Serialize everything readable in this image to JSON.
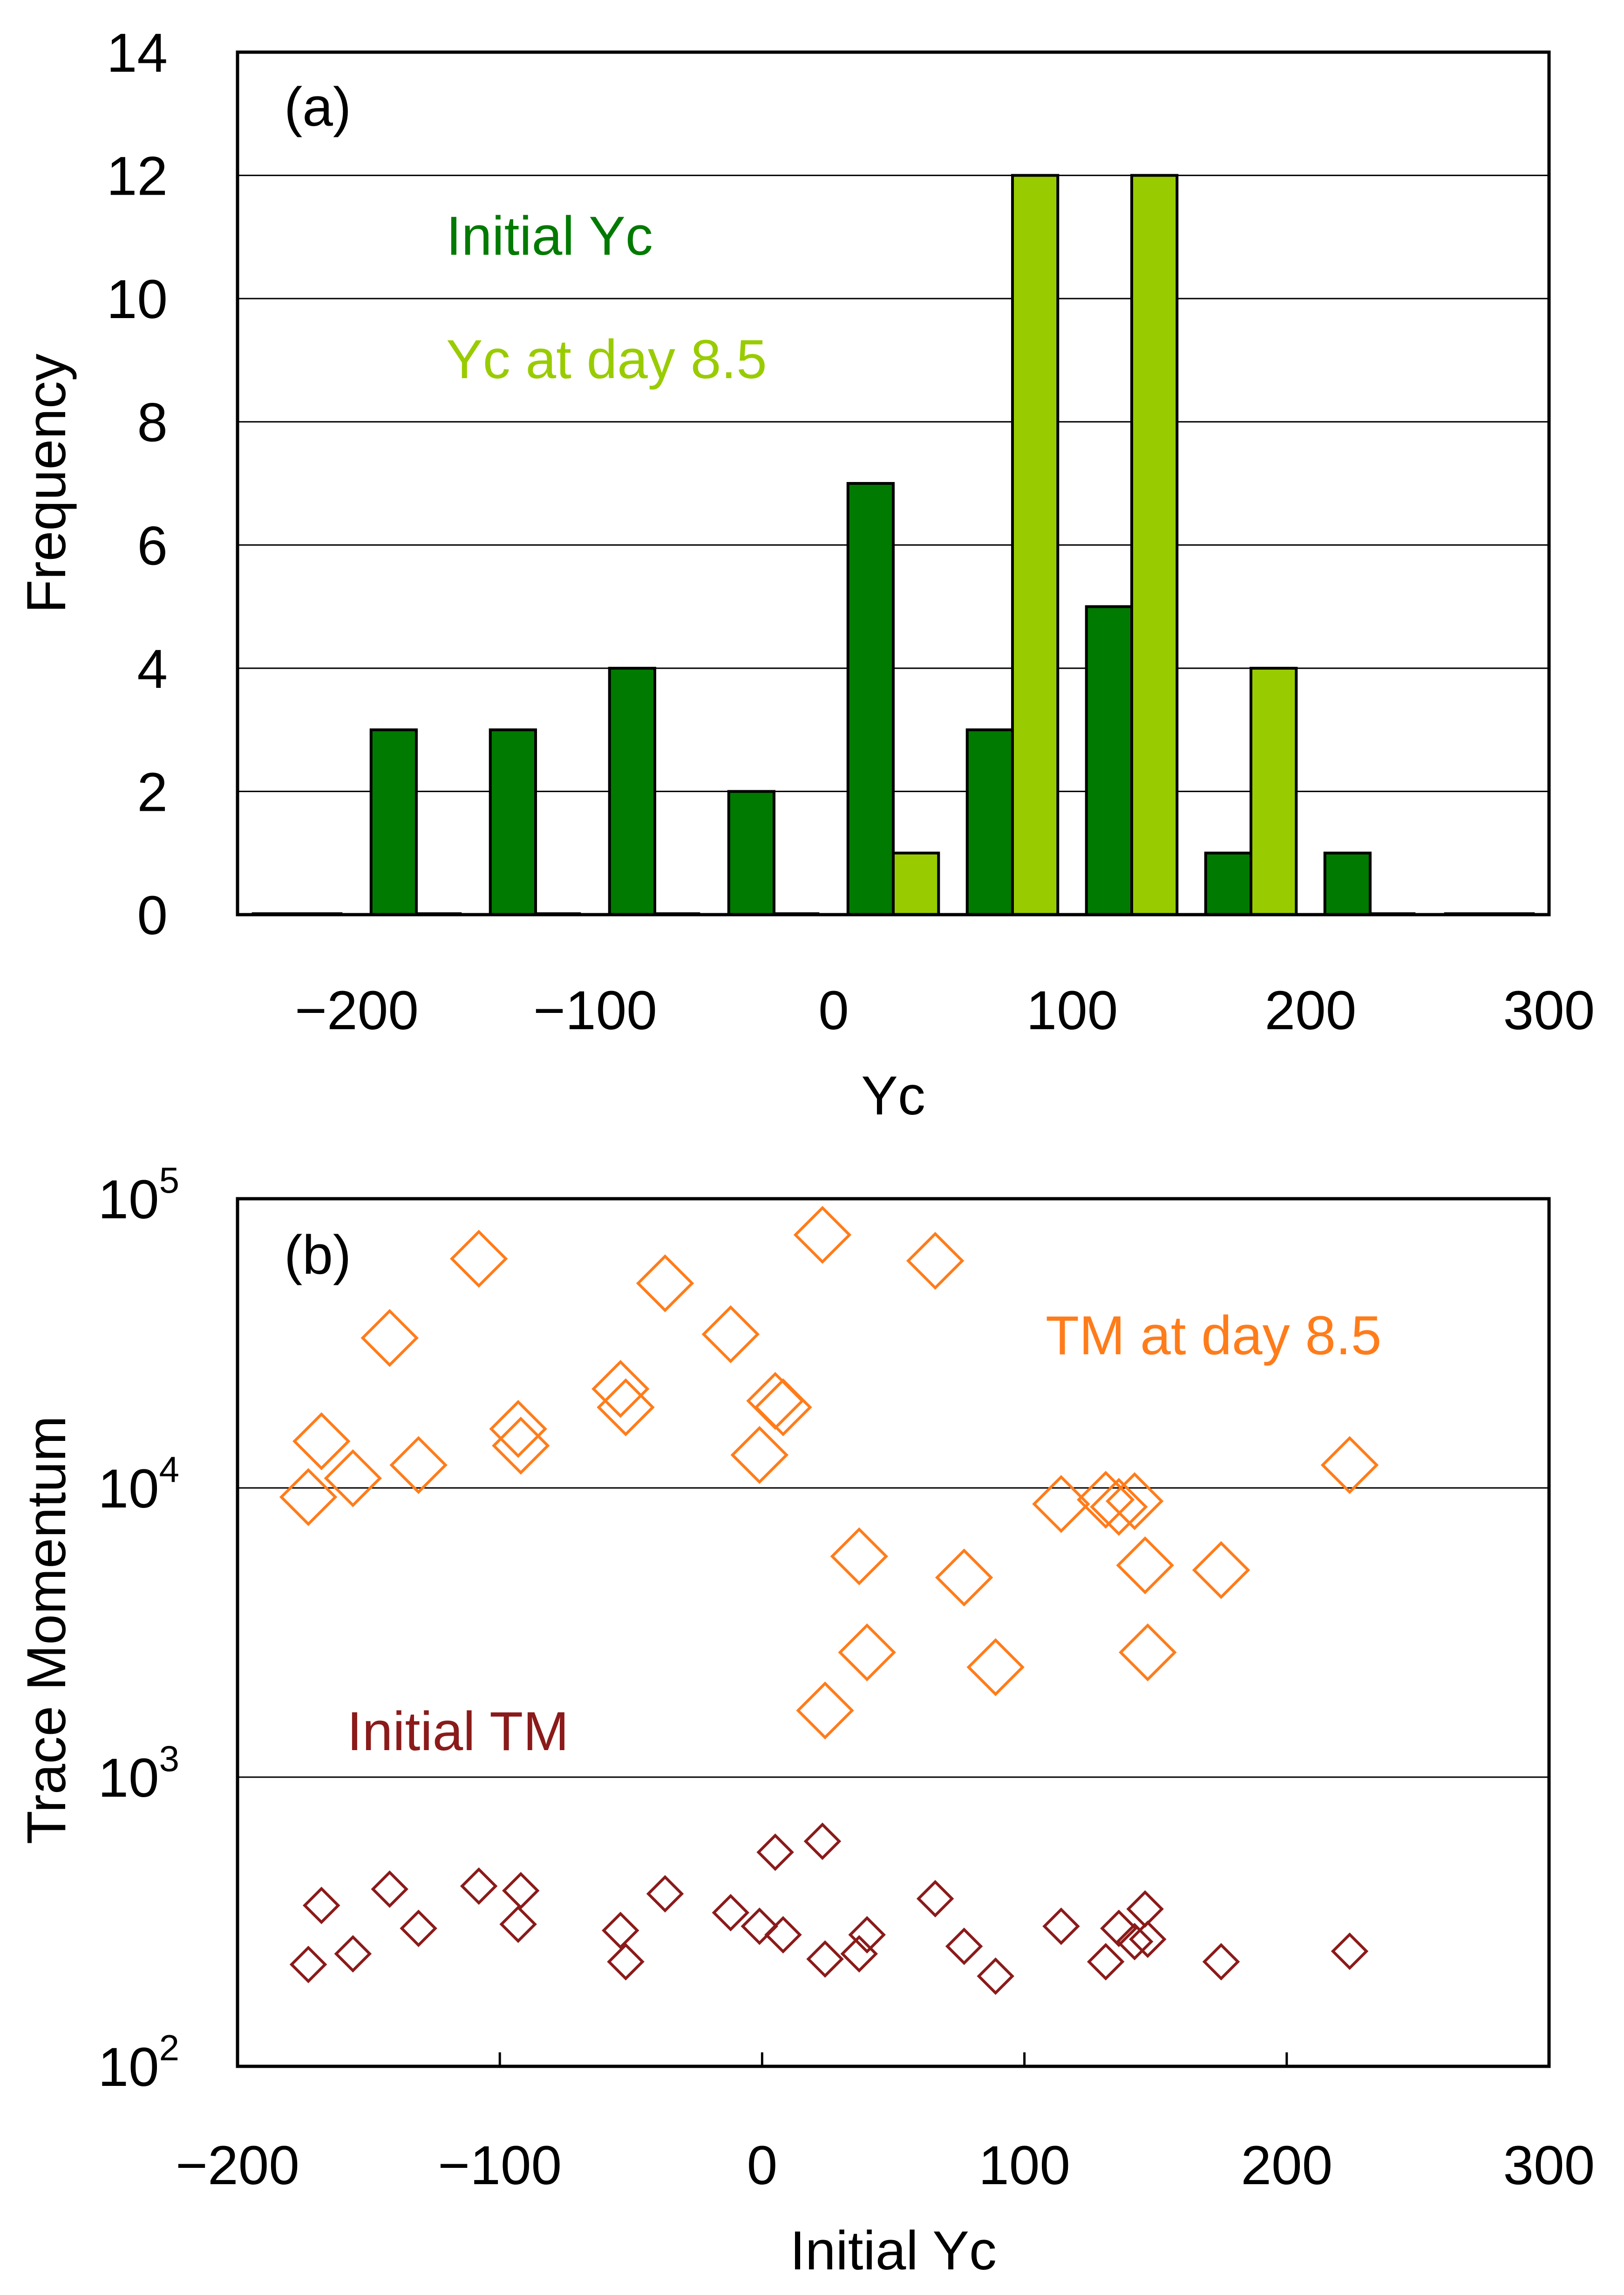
{
  "chart_data": [
    {
      "type": "bar",
      "panel_label": "(a)",
      "title": "",
      "xlabel": "Yc",
      "ylabel": "Frequency",
      "xlim": [
        -250,
        300
      ],
      "ylim": [
        0,
        14
      ],
      "x_ticks": [
        -200,
        -100,
        0,
        100,
        200,
        300
      ],
      "x_tick_labels": [
        "−200",
        "−100",
        "0",
        "100",
        "200",
        "300"
      ],
      "y_ticks": [
        0,
        2,
        4,
        6,
        8,
        10,
        12,
        14
      ],
      "y_tick_labels": [
        "0",
        "2",
        "4",
        "6",
        "8",
        "10",
        "12",
        "14"
      ],
      "grid": "horizontal",
      "bin_centers": [
        -225,
        -175,
        -125,
        -75,
        -25,
        25,
        75,
        125,
        175,
        225,
        275
      ],
      "bin_width": 50,
      "series": [
        {
          "name": "Initial Yc",
          "color": "#007a00",
          "values": [
            0,
            3,
            3,
            4,
            2,
            7,
            3,
            5,
            1,
            1,
            0
          ]
        },
        {
          "name": "Yc at day 8.5",
          "color": "#99cc00",
          "values": [
            0,
            0,
            0,
            0,
            0,
            1,
            12,
            12,
            4,
            0,
            0
          ]
        }
      ],
      "legend": [
        {
          "text": "Initial Yc",
          "color": "#007a00"
        },
        {
          "text": "Yc at day 8.5",
          "color": "#99cc00"
        }
      ],
      "legend_position": "top-left"
    },
    {
      "type": "scatter",
      "panel_label": "(b)",
      "title": "",
      "xlabel": "Initial Yc",
      "ylabel": "Trace Momentum",
      "xlim": [
        -200,
        300
      ],
      "ylim": [
        100,
        100000
      ],
      "yscale": "log",
      "x_ticks": [
        -200,
        -100,
        0,
        100,
        200,
        300
      ],
      "x_tick_labels": [
        "−200",
        "−100",
        "0",
        "100",
        "200",
        "300"
      ],
      "y_ticks": [
        {
          "value": 100,
          "base": "10",
          "exp": "2"
        },
        {
          "value": 1000,
          "base": "10",
          "exp": "3"
        },
        {
          "value": 10000,
          "base": "10",
          "exp": "4"
        },
        {
          "value": 100000,
          "base": "10",
          "exp": "5"
        }
      ],
      "grid": "horizontal",
      "series": [
        {
          "name": "TM at day 8.5",
          "color": "#ff7c1a",
          "marker": "diamond-large",
          "x": [
            -173,
            -168,
            -156,
            -142,
            -131,
            -108,
            -93,
            -92,
            -54,
            -52,
            -37,
            -12,
            -1,
            5,
            8,
            23,
            24,
            37,
            40,
            66,
            77,
            89,
            114,
            131,
            136,
            142,
            146,
            147,
            175,
            224
          ],
          "y": [
            9300,
            14500,
            10800,
            33000,
            12000,
            62000,
            16000,
            14000,
            22000,
            19000,
            51000,
            34000,
            13000,
            20000,
            19000,
            75000,
            1700,
            5800,
            2700,
            61000,
            4900,
            2400,
            8800,
            9100,
            8600,
            9000,
            5400,
            2700,
            5200,
            12000
          ]
        },
        {
          "name": "Initial TM",
          "color": "#8b1a1a",
          "marker": "diamond-small",
          "x": [
            -173,
            -168,
            -156,
            -142,
            -131,
            -108,
            -93,
            -92,
            -54,
            -52,
            -37,
            -12,
            -1,
            5,
            8,
            23,
            24,
            37,
            40,
            66,
            77,
            89,
            114,
            131,
            136,
            142,
            146,
            147,
            175,
            224
          ],
          "y": [
            225,
            360,
            245,
            410,
            300,
            420,
            310,
            405,
            295,
            230,
            395,
            340,
            305,
            550,
            285,
            600,
            235,
            245,
            285,
            380,
            260,
            205,
            305,
            230,
            300,
            270,
            350,
            275,
            230,
            250
          ]
        }
      ],
      "legend": [
        {
          "text": "TM at day 8.5",
          "color": "#ff7c1a"
        },
        {
          "text": "Initial TM",
          "color": "#8b1a1a"
        }
      ],
      "legend_position": "inline"
    }
  ]
}
